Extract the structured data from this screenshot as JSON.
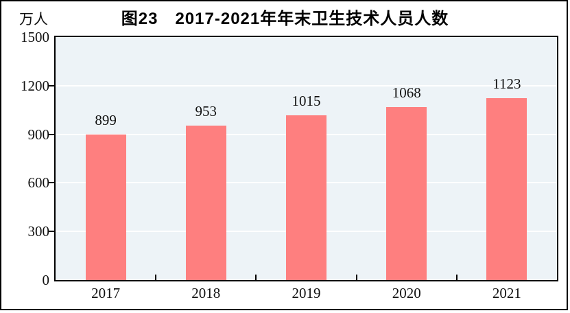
{
  "figure": {
    "background": "#ffffff",
    "frame_color": "#000000"
  },
  "chart_data": {
    "type": "bar",
    "title": "图23　2017-2021年年末卫生技术人员人数",
    "unit_label": "万人",
    "categories": [
      "2017",
      "2018",
      "2019",
      "2020",
      "2021"
    ],
    "values": [
      899,
      953,
      1015,
      1068,
      1123
    ],
    "data_labels": [
      "899",
      "953",
      "1015",
      "1068",
      "1123"
    ],
    "ylabel": "万人",
    "ylim": [
      0,
      1500
    ],
    "yticks": [
      0,
      300,
      600,
      900,
      1200,
      1500
    ],
    "grid": true,
    "legend_position": "none",
    "colors": {
      "bar": "#fe7f7f",
      "plot_background": "#edf3f7",
      "gridline": "#ffffff",
      "axis": "#000000",
      "text": "#111111"
    }
  }
}
